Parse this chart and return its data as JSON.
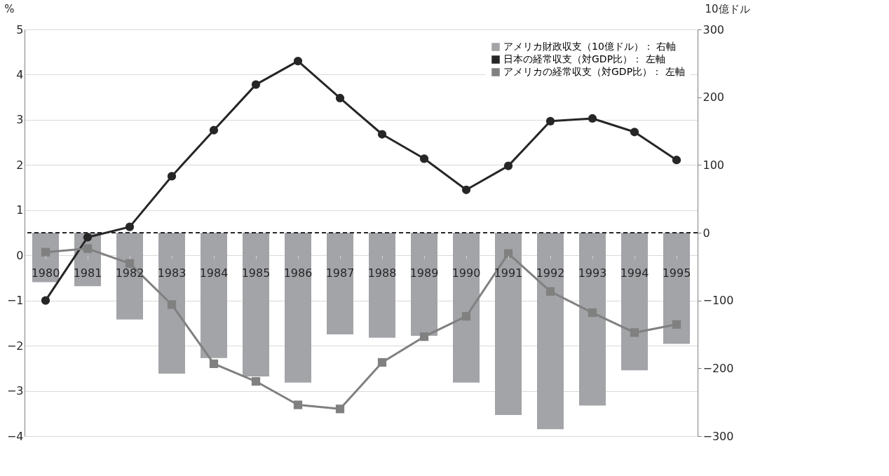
{
  "chart_data": {
    "type": "line",
    "categories": [
      "1980",
      "1981",
      "1982",
      "1983",
      "1984",
      "1985",
      "1986",
      "1987",
      "1988",
      "1989",
      "1990",
      "1991",
      "1992",
      "1993",
      "1994",
      "1995"
    ],
    "series": [
      {
        "name": "アメリカ財政収支（10億ドル）： 右軸",
        "type": "bar",
        "axis": "y2",
        "color": "#a3a4a8",
        "values": [
          -73,
          -79,
          -128,
          -208,
          -185,
          -212,
          -221,
          -150,
          -155,
          -152,
          -221,
          -269,
          -290,
          -255,
          -203,
          -164
        ]
      },
      {
        "name": "日本の経常収支（対GDP比）： 左軸",
        "color": "#262626",
        "marker": "circle",
        "values": [
          -1.0,
          0.4,
          0.63,
          1.75,
          2.77,
          3.78,
          4.3,
          3.48,
          2.68,
          2.14,
          1.45,
          1.98,
          2.97,
          3.03,
          2.73,
          2.11
        ]
      },
      {
        "name": "アメリカの経常収支（対GDP比）： 左軸",
        "color": "#808080",
        "marker": "square",
        "values": [
          0.07,
          0.15,
          -0.18,
          -1.09,
          -2.4,
          -2.79,
          -3.31,
          -3.4,
          -2.37,
          -1.8,
          -1.35,
          0.04,
          -0.8,
          -1.27,
          -1.71,
          -1.53
        ]
      }
    ],
    "ylabel": "%",
    "y2label": "10億ドル",
    "ylim": [
      -4,
      5
    ],
    "yticks": [
      {
        "value": -4,
        "label": "−4"
      },
      {
        "value": -3,
        "label": "−3"
      },
      {
        "value": -2,
        "label": "−2"
      },
      {
        "value": -1,
        "label": "−1"
      },
      0,
      1,
      2,
      3,
      4,
      5
    ],
    "y2lim": [
      -300,
      300
    ],
    "y2ticks": [
      {
        "value": -300,
        "label": "−300"
      },
      {
        "value": -200,
        "label": "−200"
      },
      {
        "value": -100,
        "label": "−100"
      },
      0,
      100,
      200,
      300
    ],
    "ref_lines": [
      {
        "axis": "y2",
        "value": 0,
        "line_style": "dashed",
        "color": "#262626"
      }
    ],
    "grid": "y",
    "legend": "top right",
    "line_style": "solid"
  }
}
